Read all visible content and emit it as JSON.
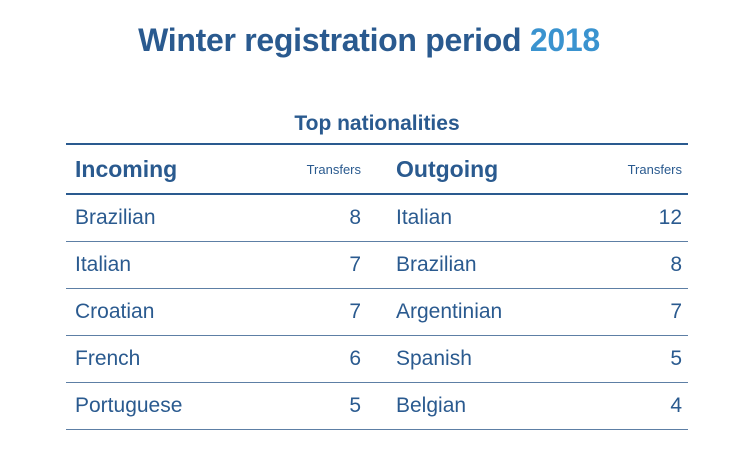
{
  "title": {
    "main": "Winter registration period",
    "year": "2018"
  },
  "subtitle": "Top nationalities",
  "table": {
    "incoming_header": "Incoming",
    "incoming_transfers_header": "Transfers",
    "outgoing_header": "Outgoing",
    "outgoing_transfers_header": "Transfers",
    "rows": [
      {
        "in_name": "Brazilian",
        "in_value": "8",
        "out_name": "Italian",
        "out_value": "12"
      },
      {
        "in_name": "Italian",
        "in_value": "7",
        "out_name": "Brazilian",
        "out_value": "8"
      },
      {
        "in_name": "Croatian",
        "in_value": "7",
        "out_name": "Argentinian",
        "out_value": "7"
      },
      {
        "in_name": "French",
        "in_value": "6",
        "out_name": "Spanish",
        "out_value": "5"
      },
      {
        "in_name": "Portuguese",
        "in_value": "5",
        "out_name": "Belgian",
        "out_value": "4"
      }
    ]
  },
  "colors": {
    "primary": "#2a5a8f",
    "accent": "#3a93cf"
  }
}
